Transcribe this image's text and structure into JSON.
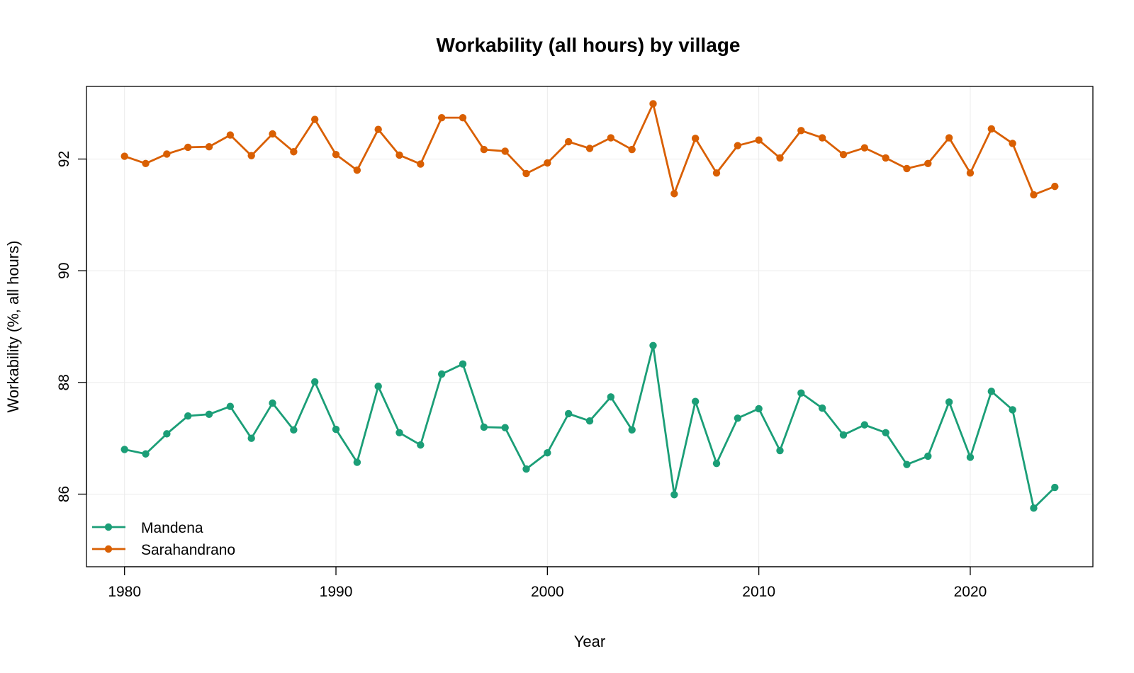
{
  "chart_data": {
    "type": "line",
    "title": "Workability (all hours) by village",
    "xlabel": "Year",
    "ylabel": "Workability (%, all hours)",
    "xlim": [
      1978.2,
      2025.8
    ],
    "ylim": [
      84.7,
      93.3
    ],
    "x_ticks": [
      1980,
      1990,
      2000,
      2010,
      2020
    ],
    "y_ticks": [
      86,
      88,
      90,
      92
    ],
    "grid": true,
    "legend_position": "bottom-left",
    "x": [
      1980,
      1981,
      1982,
      1983,
      1984,
      1985,
      1986,
      1987,
      1988,
      1989,
      1990,
      1991,
      1992,
      1993,
      1994,
      1995,
      1996,
      1997,
      1998,
      1999,
      2000,
      2001,
      2002,
      2003,
      2004,
      2005,
      2006,
      2007,
      2008,
      2009,
      2010,
      2011,
      2012,
      2013,
      2014,
      2015,
      2016,
      2017,
      2018,
      2019,
      2020,
      2021,
      2022,
      2023,
      2024
    ],
    "series": [
      {
        "name": "Mandena",
        "color": "#1b9e77",
        "values": [
          86.8,
          86.72,
          87.08,
          87.4,
          87.43,
          87.57,
          87.0,
          87.63,
          87.15,
          88.01,
          87.16,
          86.57,
          87.93,
          87.1,
          86.88,
          88.15,
          88.33,
          87.2,
          87.19,
          86.45,
          86.74,
          87.44,
          87.31,
          87.74,
          87.15,
          88.66,
          85.99,
          87.66,
          86.55,
          87.36,
          87.53,
          86.78,
          87.81,
          87.54,
          87.06,
          87.24,
          87.1,
          86.53,
          86.68,
          87.65,
          86.66,
          87.84,
          87.51,
          85.75,
          86.12
        ]
      },
      {
        "name": "Sarahandrano",
        "color": "#d95f02",
        "values": [
          92.05,
          91.92,
          92.09,
          92.21,
          92.22,
          92.43,
          92.06,
          92.45,
          92.13,
          92.71,
          92.08,
          91.8,
          92.53,
          92.07,
          91.91,
          92.74,
          92.74,
          92.17,
          92.14,
          91.74,
          91.93,
          92.31,
          92.19,
          92.38,
          92.17,
          92.99,
          91.38,
          92.37,
          91.75,
          92.24,
          92.34,
          92.02,
          92.51,
          92.38,
          92.08,
          92.2,
          92.02,
          91.83,
          91.92,
          92.38,
          91.75,
          92.54,
          92.28,
          91.36,
          91.51
        ]
      }
    ]
  }
}
